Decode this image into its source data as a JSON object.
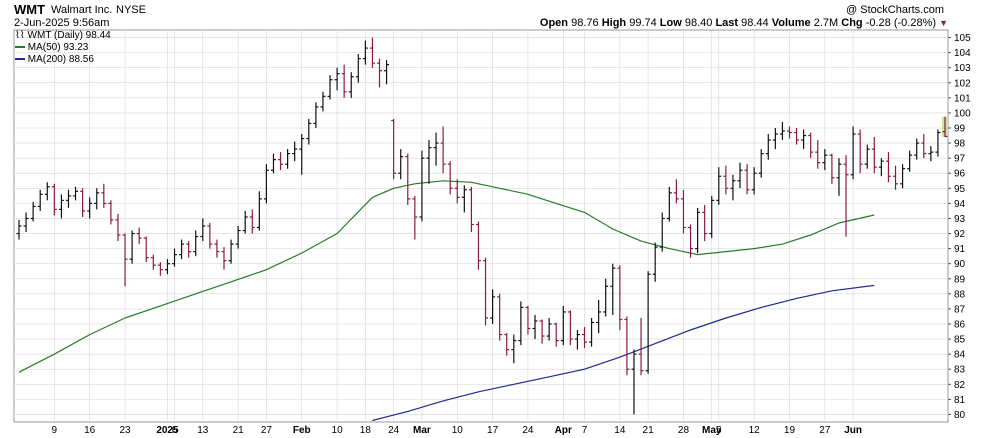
{
  "header": {
    "symbol": "WMT",
    "company": "Walmart Inc.",
    "exchange": "NYSE",
    "copyright": "@ StockCharts.com",
    "date": "2-Jun-2025 9:56am",
    "quote": {
      "open_label": "Open",
      "open": "98.76",
      "high_label": "High",
      "high": "99.74",
      "low_label": "Low",
      "low": "98.40",
      "last_label": "Last",
      "last": "98.44",
      "volume_label": "Volume",
      "volume": "2.7M",
      "chg_label": "Chg",
      "chg": "-0.28 (-0.28%)"
    }
  },
  "legend": {
    "price": "WMT (Daily) 98.44",
    "ma50": "MA(50) 93.23",
    "ma200": "MA(200) 88.56"
  },
  "colors": {
    "up": "#111111",
    "down": "#8b1a4a",
    "ma50": "#2a7a2a",
    "ma200": "#1f2a8f",
    "grid": "#d6d6d6",
    "last_highlight": "#c8e6a0"
  },
  "chart_data": {
    "type": "ohlc",
    "y_axis_position": "right",
    "ylim": [
      79.5,
      105.5
    ],
    "grid": true,
    "y_ticks": [
      80,
      81,
      82,
      83,
      84,
      85,
      86,
      87,
      88,
      89,
      90,
      91,
      92,
      93,
      94,
      95,
      96,
      97,
      98,
      99,
      100,
      101,
      102,
      103,
      104,
      105
    ],
    "x_ticks": [
      {
        "index": 5,
        "label": "9"
      },
      {
        "index": 10,
        "label": "16"
      },
      {
        "index": 15,
        "label": "23"
      },
      {
        "index": 21,
        "label": "2025"
      },
      {
        "index": 22,
        "label": "6"
      },
      {
        "index": 26,
        "label": "13"
      },
      {
        "index": 31,
        "label": "21"
      },
      {
        "index": 35,
        "label": "27"
      },
      {
        "index": 40,
        "label": "Feb"
      },
      {
        "index": 45,
        "label": "10"
      },
      {
        "index": 49,
        "label": "18"
      },
      {
        "index": 53,
        "label": "24"
      },
      {
        "index": 57,
        "label": "Mar"
      },
      {
        "index": 62,
        "label": "10"
      },
      {
        "index": 67,
        "label": "17"
      },
      {
        "index": 72,
        "label": "24"
      },
      {
        "index": 77,
        "label": "Apr"
      },
      {
        "index": 80,
        "label": "7"
      },
      {
        "index": 85,
        "label": "14"
      },
      {
        "index": 89,
        "label": "21"
      },
      {
        "index": 94,
        "label": "28"
      },
      {
        "index": 98,
        "label": "May"
      },
      {
        "index": 99,
        "label": "5"
      },
      {
        "index": 104,
        "label": "12"
      },
      {
        "index": 109,
        "label": "19"
      },
      {
        "index": 114,
        "label": "27"
      },
      {
        "index": 118,
        "label": "Jun"
      }
    ],
    "series": [
      {
        "name": "WMT (Daily) 98.44",
        "kind": "ohlc",
        "values": [
          [
            92.0,
            92.9,
            91.6,
            92.5
          ],
          [
            92.5,
            93.4,
            92.1,
            93.0
          ],
          [
            93.0,
            94.1,
            92.8,
            93.8
          ],
          [
            93.8,
            94.9,
            93.5,
            94.6
          ],
          [
            94.6,
            95.4,
            94.2,
            95.1
          ],
          [
            95.1,
            95.3,
            93.2,
            93.6
          ],
          [
            93.6,
            94.6,
            93.0,
            94.2
          ],
          [
            94.2,
            94.9,
            93.7,
            94.5
          ],
          [
            94.5,
            95.1,
            94.2,
            94.8
          ],
          [
            94.8,
            95.0,
            93.1,
            93.5
          ],
          [
            93.5,
            94.4,
            93.0,
            94.0
          ],
          [
            94.0,
            95.0,
            93.6,
            94.7
          ],
          [
            94.7,
            95.3,
            93.7,
            94.0
          ],
          [
            94.0,
            94.2,
            92.6,
            92.9
          ],
          [
            92.9,
            93.3,
            91.5,
            91.9
          ],
          [
            91.9,
            92.0,
            88.5,
            90.3
          ],
          [
            90.3,
            92.2,
            90.0,
            92.0
          ],
          [
            92.0,
            92.4,
            91.3,
            91.7
          ],
          [
            91.7,
            91.8,
            90.1,
            90.4
          ],
          [
            90.4,
            90.6,
            89.6,
            89.9
          ],
          [
            89.9,
            90.1,
            89.2,
            89.6
          ],
          [
            89.6,
            90.3,
            89.3,
            90.0
          ],
          [
            90.0,
            91.0,
            89.8,
            90.6
          ],
          [
            90.6,
            91.6,
            90.3,
            91.3
          ],
          [
            91.3,
            91.5,
            90.4,
            90.8
          ],
          [
            90.8,
            92.2,
            90.5,
            91.8
          ],
          [
            91.8,
            93.0,
            91.5,
            92.5
          ],
          [
            92.5,
            92.7,
            91.0,
            91.3
          ],
          [
            91.3,
            91.6,
            90.4,
            90.8
          ],
          [
            90.8,
            91.1,
            89.6,
            90.2
          ],
          [
            90.2,
            91.6,
            90.0,
            91.3
          ],
          [
            91.3,
            92.5,
            91.0,
            92.2
          ],
          [
            92.2,
            93.5,
            92.0,
            93.1
          ],
          [
            93.1,
            93.6,
            92.0,
            92.4
          ],
          [
            92.4,
            94.8,
            92.2,
            94.3
          ],
          [
            94.3,
            96.6,
            94.0,
            96.2
          ],
          [
            96.2,
            97.3,
            96.0,
            96.9
          ],
          [
            96.9,
            97.4,
            96.2,
            96.6
          ],
          [
            96.6,
            97.6,
            96.3,
            97.3
          ],
          [
            97.3,
            98.1,
            96.8,
            97.6
          ],
          [
            97.6,
            98.6,
            95.9,
            98.3
          ],
          [
            98.3,
            99.6,
            97.9,
            99.3
          ],
          [
            99.3,
            100.7,
            99.0,
            100.4
          ],
          [
            100.4,
            101.4,
            100.1,
            101.1
          ],
          [
            101.1,
            102.5,
            100.9,
            102.2
          ],
          [
            102.2,
            103.0,
            101.5,
            102.6
          ],
          [
            102.6,
            103.2,
            101.0,
            101.4
          ],
          [
            101.4,
            102.7,
            101.0,
            102.4
          ],
          [
            102.4,
            103.9,
            102.0,
            103.6
          ],
          [
            103.6,
            104.8,
            103.2,
            104.3
          ],
          [
            104.3,
            105.0,
            103.0,
            103.3
          ],
          [
            103.3,
            103.6,
            101.7,
            102.8
          ],
          [
            102.8,
            103.5,
            101.9,
            103.2
          ],
          [
            99.5,
            99.6,
            95.6,
            96.0
          ],
          [
            96.0,
            97.6,
            95.6,
            97.1
          ],
          [
            97.1,
            97.3,
            93.9,
            94.3
          ],
          [
            94.3,
            94.5,
            91.6,
            93.1
          ],
          [
            93.1,
            97.5,
            92.8,
            97.0
          ],
          [
            97.0,
            98.2,
            95.3,
            97.7
          ],
          [
            97.7,
            98.7,
            96.5,
            98.0
          ],
          [
            98.0,
            99.1,
            96.0,
            96.6
          ],
          [
            96.6,
            96.8,
            94.6,
            95.0
          ],
          [
            95.0,
            95.6,
            94.0,
            94.4
          ],
          [
            94.4,
            95.2,
            93.4,
            94.9
          ],
          [
            94.9,
            95.1,
            92.1,
            92.6
          ],
          [
            92.6,
            92.8,
            89.6,
            90.2
          ],
          [
            90.2,
            90.4,
            85.9,
            86.4
          ],
          [
            86.4,
            88.3,
            86.0,
            87.8
          ],
          [
            87.8,
            88.0,
            84.9,
            85.3
          ],
          [
            85.3,
            85.4,
            83.9,
            84.3
          ],
          [
            84.3,
            85.3,
            83.4,
            84.9
          ],
          [
            84.9,
            87.5,
            84.6,
            87.1
          ],
          [
            87.1,
            87.2,
            85.3,
            85.7
          ],
          [
            85.7,
            86.6,
            85.0,
            86.2
          ],
          [
            86.2,
            86.3,
            84.7,
            85.2
          ],
          [
            85.2,
            86.4,
            84.9,
            86.0
          ],
          [
            86.0,
            86.1,
            84.5,
            84.9
          ],
          [
            84.9,
            87.2,
            84.6,
            86.8
          ],
          [
            86.8,
            86.9,
            84.6,
            85.0
          ],
          [
            85.0,
            85.6,
            84.3,
            85.3
          ],
          [
            85.3,
            85.8,
            84.4,
            84.8
          ],
          [
            84.8,
            86.4,
            84.5,
            86.1
          ],
          [
            86.1,
            87.6,
            85.4,
            86.8
          ],
          [
            86.8,
            89.0,
            86.5,
            88.5
          ],
          [
            88.5,
            90.0,
            86.6,
            89.7
          ],
          [
            89.7,
            89.9,
            85.6,
            86.3
          ],
          [
            86.3,
            86.5,
            82.6,
            83.0
          ],
          [
            83.0,
            84.3,
            80.0,
            84.0
          ],
          [
            84.0,
            86.4,
            82.6,
            82.9
          ],
          [
            82.9,
            89.5,
            82.7,
            89.3
          ],
          [
            89.3,
            91.4,
            88.8,
            91.1
          ],
          [
            91.1,
            93.4,
            90.8,
            93.0
          ],
          [
            93.0,
            95.1,
            92.8,
            94.7
          ],
          [
            94.7,
            95.6,
            94.0,
            94.3
          ],
          [
            94.3,
            94.9,
            92.0,
            92.4
          ],
          [
            92.4,
            92.6,
            90.4,
            91.0
          ],
          [
            91.0,
            93.7,
            90.7,
            93.4
          ],
          [
            93.4,
            93.9,
            91.5,
            92.0
          ],
          [
            92.0,
            94.5,
            91.7,
            94.2
          ],
          [
            94.2,
            96.4,
            93.9,
            95.8
          ],
          [
            95.8,
            96.5,
            94.6,
            95.0
          ],
          [
            95.0,
            95.9,
            94.2,
            95.5
          ],
          [
            95.5,
            96.7,
            95.0,
            96.2
          ],
          [
            96.2,
            96.6,
            94.6,
            94.9
          ],
          [
            94.9,
            96.4,
            94.6,
            96.0
          ],
          [
            96.0,
            97.6,
            95.7,
            97.3
          ],
          [
            97.3,
            98.6,
            96.9,
            98.2
          ],
          [
            98.2,
            99.0,
            97.6,
            98.6
          ],
          [
            98.6,
            99.4,
            98.2,
            98.8
          ],
          [
            98.8,
            99.1,
            98.3,
            98.7
          ],
          [
            98.7,
            99.0,
            97.9,
            98.2
          ],
          [
            98.2,
            98.9,
            97.6,
            98.5
          ],
          [
            98.5,
            98.7,
            97.0,
            97.4
          ],
          [
            97.4,
            98.2,
            96.3,
            96.7
          ],
          [
            96.7,
            97.6,
            96.2,
            97.2
          ],
          [
            97.2,
            97.3,
            95.3,
            95.7
          ],
          [
            95.7,
            97.0,
            94.5,
            96.6
          ],
          [
            96.6,
            97.2,
            91.8,
            95.9
          ],
          [
            95.9,
            99.1,
            95.6,
            98.6
          ],
          [
            98.6,
            98.9,
            96.0,
            96.6
          ],
          [
            96.6,
            97.9,
            96.3,
            97.6
          ],
          [
            97.6,
            98.4,
            96.0,
            96.4
          ],
          [
            96.4,
            97.0,
            95.8,
            96.8
          ],
          [
            96.8,
            97.4,
            95.4,
            95.8
          ],
          [
            95.8,
            96.5,
            94.9,
            95.3
          ],
          [
            95.3,
            96.6,
            95.0,
            96.3
          ],
          [
            96.3,
            97.5,
            96.1,
            97.2
          ],
          [
            97.2,
            98.3,
            96.9,
            98.0
          ],
          [
            98.0,
            98.6,
            97.0,
            97.3
          ],
          [
            97.3,
            97.8,
            96.8,
            97.4
          ],
          [
            97.4,
            98.9,
            97.1,
            98.7
          ],
          [
            98.76,
            99.74,
            98.4,
            98.44
          ]
        ]
      },
      {
        "name": "MA(50) 93.23",
        "kind": "line",
        "points": [
          [
            0,
            82.8
          ],
          [
            5,
            84.0
          ],
          [
            10,
            85.3
          ],
          [
            15,
            86.4
          ],
          [
            20,
            87.2
          ],
          [
            25,
            88.0
          ],
          [
            30,
            88.8
          ],
          [
            35,
            89.6
          ],
          [
            40,
            90.7
          ],
          [
            45,
            92.0
          ],
          [
            50,
            94.4
          ],
          [
            53,
            95.0
          ],
          [
            56,
            95.3
          ],
          [
            60,
            95.5
          ],
          [
            64,
            95.4
          ],
          [
            68,
            95.0
          ],
          [
            72,
            94.6
          ],
          [
            76,
            94.0
          ],
          [
            80,
            93.4
          ],
          [
            84,
            92.3
          ],
          [
            88,
            91.5
          ],
          [
            92,
            91.0
          ],
          [
            96,
            90.6
          ],
          [
            100,
            90.8
          ],
          [
            104,
            91.0
          ],
          [
            108,
            91.3
          ],
          [
            112,
            91.9
          ],
          [
            116,
            92.7
          ],
          [
            121,
            93.23
          ]
        ]
      },
      {
        "name": "MA(200) 88.56",
        "kind": "line",
        "points": [
          [
            50,
            79.6
          ],
          [
            55,
            80.2
          ],
          [
            60,
            80.9
          ],
          [
            65,
            81.5
          ],
          [
            70,
            82.0
          ],
          [
            75,
            82.5
          ],
          [
            80,
            83.0
          ],
          [
            85,
            83.8
          ],
          [
            90,
            84.7
          ],
          [
            95,
            85.6
          ],
          [
            100,
            86.4
          ],
          [
            105,
            87.1
          ],
          [
            110,
            87.7
          ],
          [
            115,
            88.2
          ],
          [
            121,
            88.56
          ]
        ]
      }
    ]
  }
}
